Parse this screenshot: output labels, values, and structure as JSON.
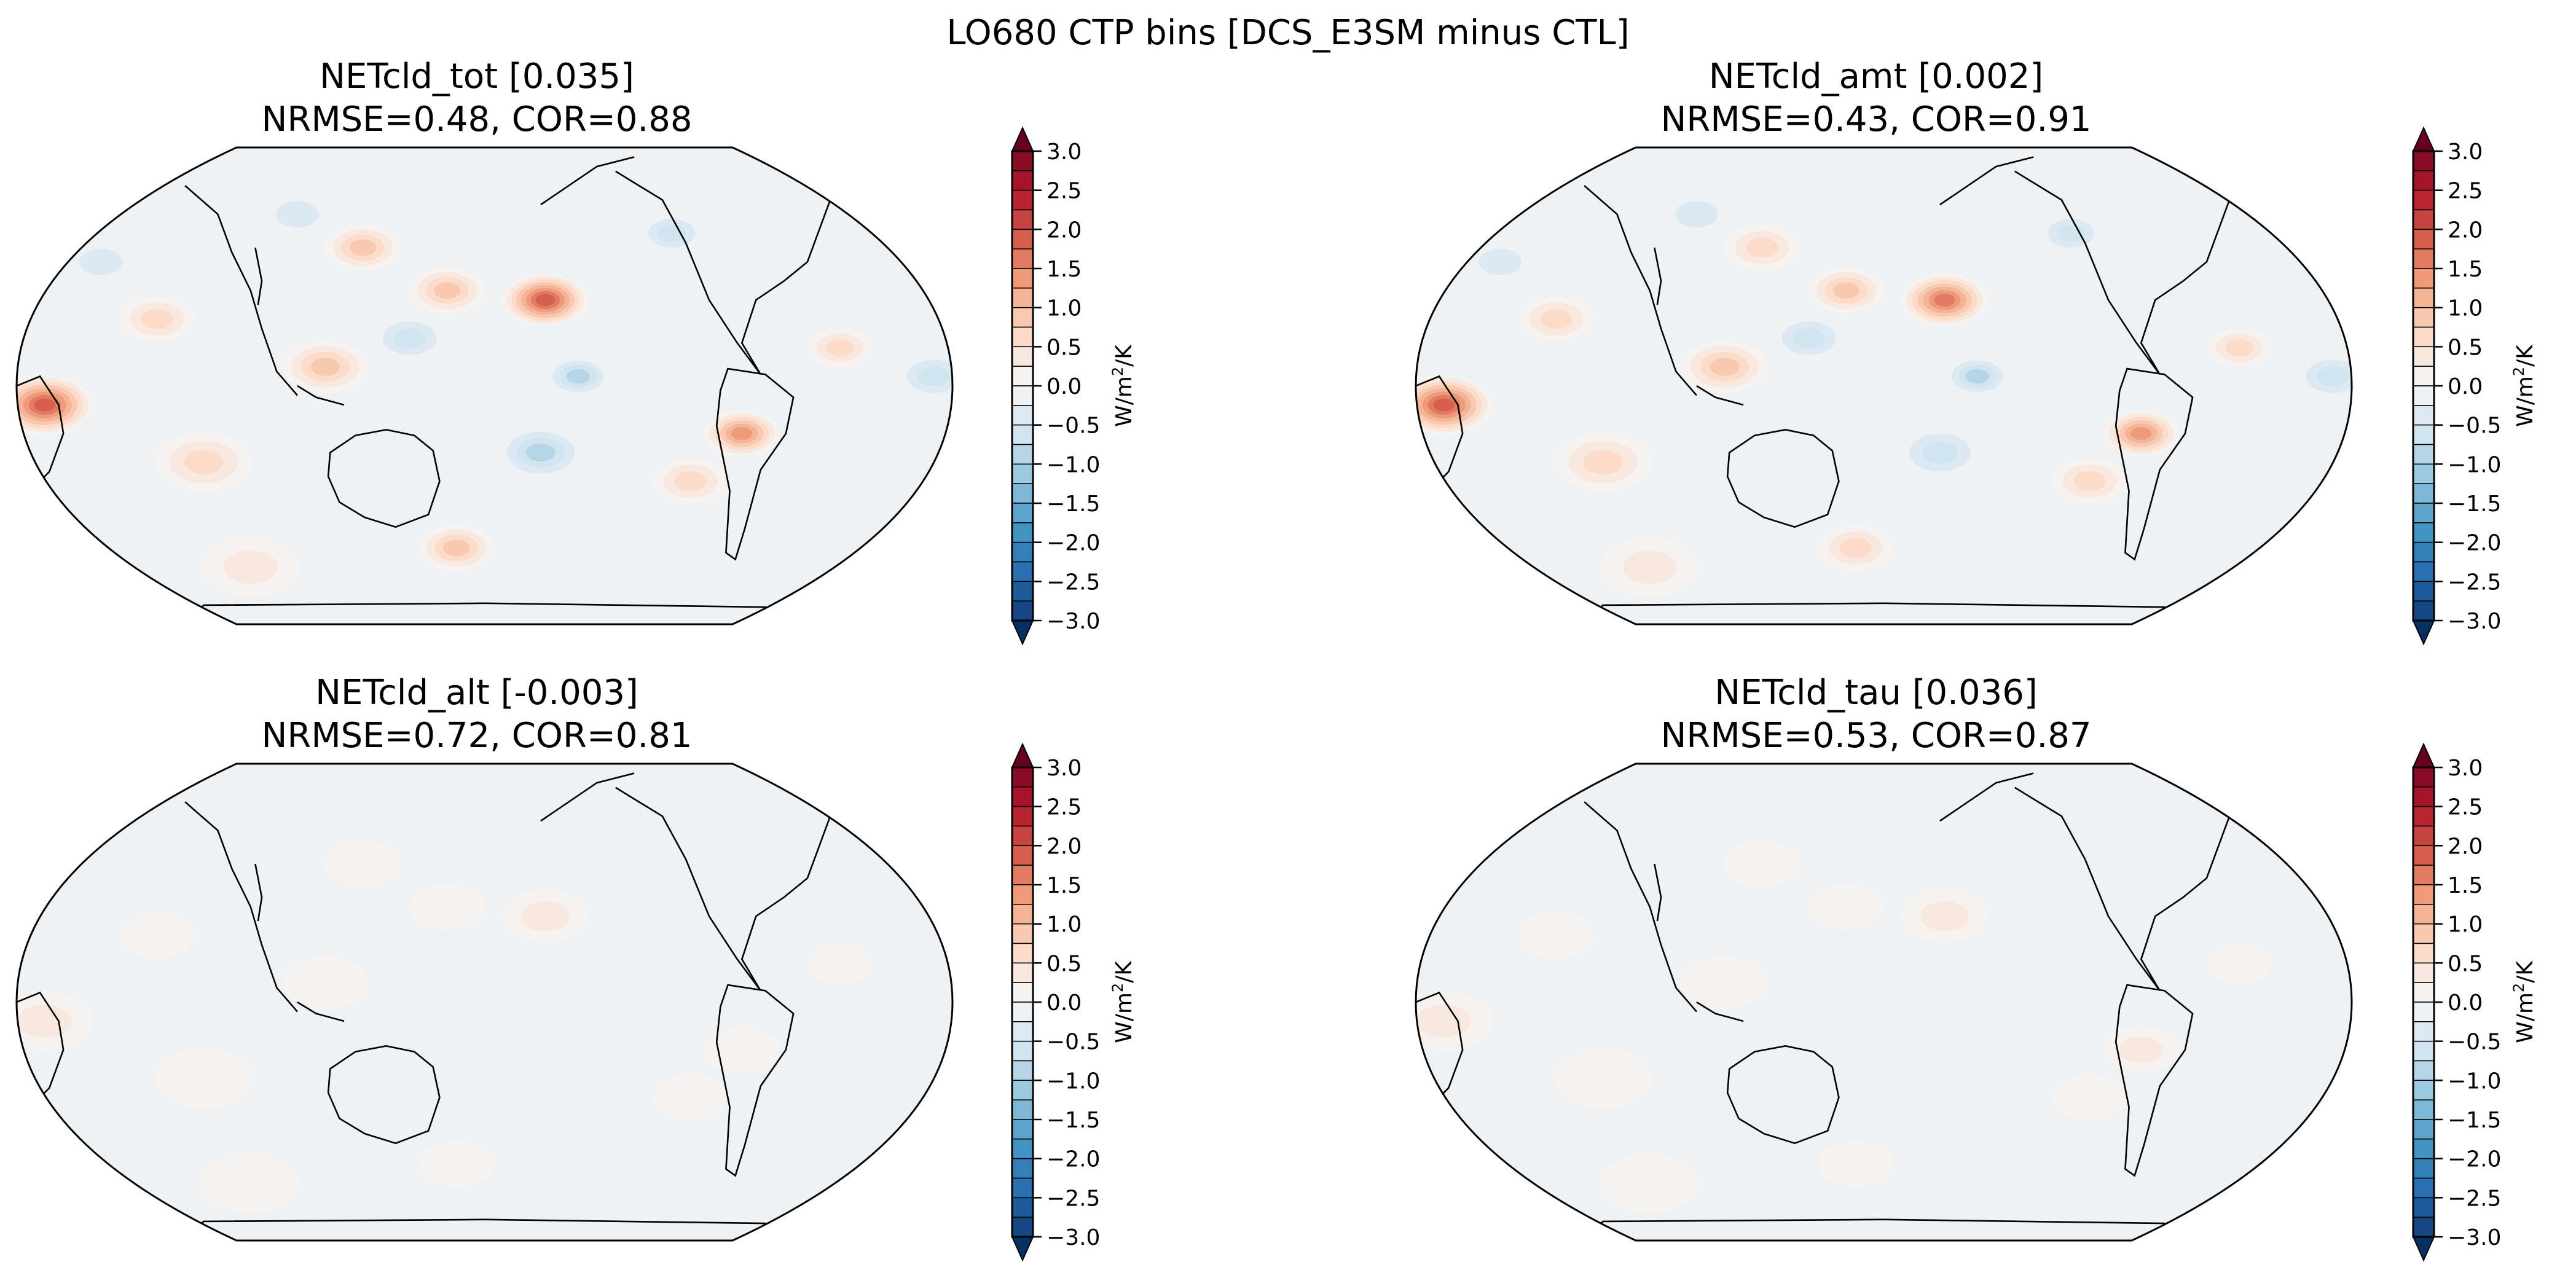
{
  "chart_data": {
    "type": "heatmap",
    "title": "LO680 CTP bins [DCS_E3SM minus CTL]",
    "projection": "Robinson, centered on Pacific",
    "colormap": "RdBu_r",
    "colorbar": {
      "label": "W/m²/K",
      "label_main": "W/m",
      "label_sup": "2",
      "label_tail": "/K",
      "range": [
        -3.0,
        3.0
      ],
      "level_step": 0.25,
      "extend": "both",
      "ticks": [
        "3.0",
        "2.5",
        "2.0",
        "1.5",
        "1.0",
        "0.5",
        "0.0",
        "−0.5",
        "−1.0",
        "−1.5",
        "−2.0",
        "−2.5",
        "−3.0"
      ],
      "colors_top_to_bottom": [
        "#890b25",
        "#a51429",
        "#b82531",
        "#c6443f",
        "#d6604d",
        "#e27b62",
        "#ef9b7a",
        "#f4b597",
        "#f8c8b0",
        "#fcdcc9",
        "#f9e8df",
        "#f6f2ef",
        "#eef2f5",
        "#dde9f2",
        "#d1e5f0",
        "#b6d6e8",
        "#9ccae1",
        "#7eb8d7",
        "#5fa4cd",
        "#4393c3",
        "#3480b9",
        "#2a6fb0",
        "#1d5a9a",
        "#164684"
      ],
      "over_color": "#67001f",
      "under_color": "#053061"
    },
    "panels": [
      {
        "name": "NETcld_tot",
        "title": "NETcld_tot [0.035]",
        "stats": "NRMSE=0.48, COR=0.88",
        "global_mean": 0.035,
        "nrmse": 0.48,
        "cor": 0.88,
        "amplitude": 1.0
      },
      {
        "name": "NETcld_amt",
        "title": "NETcld_amt [0.002]",
        "stats": "NRMSE=0.43, COR=0.91",
        "global_mean": 0.002,
        "nrmse": 0.43,
        "cor": 0.91,
        "amplitude": 0.9
      },
      {
        "name": "NETcld_alt",
        "title": "NETcld_alt [-0.003]",
        "stats": "NRMSE=0.72, COR=0.81",
        "global_mean": -0.003,
        "nrmse": 0.72,
        "cor": 0.81,
        "amplitude": 0.15
      },
      {
        "name": "NETcld_tau",
        "title": "NETcld_tau [0.036]",
        "stats": "NRMSE=0.53, COR=0.87",
        "global_mean": 0.036,
        "nrmse": 0.53,
        "cor": 0.87,
        "amplitude": 0.25
      }
    ]
  }
}
